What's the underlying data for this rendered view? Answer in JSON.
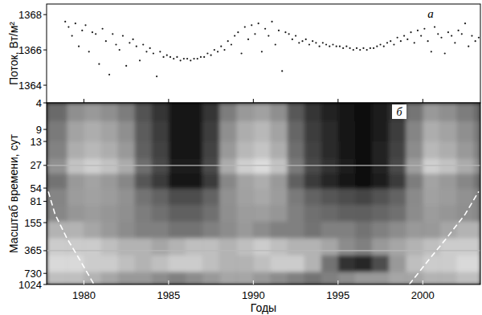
{
  "chart_data": [
    {
      "type": "scatter",
      "y_label": "Поток, Вт/м²",
      "panel_label": "а",
      "color": "#1a1a1a",
      "marker": "dot",
      "tick_labels": "y",
      "xlim": [
        1977.8,
        2003.4
      ],
      "xticks": [
        1980,
        1985,
        1990,
        1995,
        2000
      ],
      "ylim": [
        1363.0,
        1368.6
      ],
      "yticks": [
        1364,
        1366,
        1368
      ],
      "x": [
        1978.9,
        1979.1,
        1979.3,
        1979.5,
        1979.7,
        1979.9,
        1980.1,
        1980.3,
        1980.5,
        1980.7,
        1980.9,
        1981.1,
        1981.3,
        1981.5,
        1981.7,
        1981.9,
        1982.1,
        1982.3,
        1982.5,
        1982.7,
        1982.9,
        1983.1,
        1983.3,
        1983.5,
        1983.7,
        1983.9,
        1984.1,
        1984.3,
        1984.5,
        1984.7,
        1984.9,
        1985.1,
        1985.3,
        1985.5,
        1985.7,
        1985.9,
        1986.1,
        1986.3,
        1986.5,
        1986.7,
        1986.9,
        1987.1,
        1987.3,
        1987.5,
        1987.7,
        1987.9,
        1988.1,
        1988.3,
        1988.5,
        1988.7,
        1988.9,
        1989.1,
        1989.3,
        1989.5,
        1989.7,
        1989.9,
        1990.1,
        1990.3,
        1990.5,
        1990.7,
        1990.9,
        1991.1,
        1991.3,
        1991.5,
        1991.7,
        1991.9,
        1992.1,
        1992.3,
        1992.5,
        1992.7,
        1992.9,
        1993.1,
        1993.3,
        1993.5,
        1993.7,
        1993.9,
        1994.1,
        1994.3,
        1994.5,
        1994.7,
        1994.9,
        1995.1,
        1995.3,
        1995.5,
        1995.7,
        1995.9,
        1996.1,
        1996.3,
        1996.5,
        1996.7,
        1996.9,
        1997.1,
        1997.3,
        1997.5,
        1997.7,
        1997.9,
        1998.1,
        1998.3,
        1998.5,
        1998.7,
        1998.9,
        1999.1,
        1999.3,
        1999.5,
        1999.7,
        1999.9,
        2000.1,
        2000.3,
        2000.5,
        2000.7,
        2000.9,
        2001.1,
        2001.3,
        2001.5,
        2001.7,
        2001.9,
        2002.1,
        2002.3,
        2002.5,
        2002.7,
        2002.9,
        2003.1,
        2003.3
      ],
      "values": [
        1367.6,
        1367.3,
        1366.8,
        1367.5,
        1366.2,
        1367.1,
        1367.4,
        1365.9,
        1367.0,
        1366.9,
        1365.2,
        1367.2,
        1366.5,
        1364.6,
        1366.9,
        1366.3,
        1366.0,
        1366.8,
        1365.1,
        1366.4,
        1366.6,
        1366.2,
        1365.4,
        1366.3,
        1365.9,
        1366.1,
        1365.8,
        1364.5,
        1365.9,
        1365.6,
        1365.7,
        1365.6,
        1365.5,
        1365.6,
        1365.4,
        1365.5,
        1365.5,
        1365.4,
        1365.5,
        1365.5,
        1365.6,
        1365.6,
        1365.8,
        1365.7,
        1366.0,
        1365.9,
        1366.2,
        1366.0,
        1366.5,
        1366.3,
        1366.8,
        1367.0,
        1365.8,
        1367.3,
        1366.6,
        1367.4,
        1366.9,
        1367.5,
        1365.9,
        1367.2,
        1366.8,
        1367.6,
        1366.3,
        1367.1,
        1364.8,
        1367.0,
        1366.9,
        1366.6,
        1366.8,
        1366.4,
        1366.5,
        1366.6,
        1366.3,
        1366.5,
        1366.4,
        1366.2,
        1366.4,
        1366.3,
        1366.2,
        1366.3,
        1366.2,
        1366.2,
        1366.1,
        1366.2,
        1366.1,
        1366.0,
        1366.1,
        1366.0,
        1366.1,
        1366.0,
        1366.1,
        1366.1,
        1366.2,
        1366.3,
        1366.2,
        1366.4,
        1366.5,
        1366.3,
        1366.7,
        1366.5,
        1366.8,
        1366.6,
        1367.0,
        1366.4,
        1367.1,
        1366.8,
        1367.2,
        1366.5,
        1365.9,
        1367.3,
        1366.9,
        1366.7,
        1365.8,
        1367.0,
        1366.8,
        1366.4,
        1367.1,
        1366.9,
        1367.5,
        1366.2,
        1366.8,
        1366.5,
        1366.7
      ]
    },
    {
      "type": "heatmap",
      "y_label": "Масштаб времени, сут",
      "x_label": "Годы",
      "panel_label": "б",
      "log": "y",
      "xlim": [
        1977.8,
        2003.4
      ],
      "xticks": [
        1980,
        1985,
        1990,
        1995,
        2000
      ],
      "ylim": [
        1024,
        4
      ],
      "yticks": [
        4,
        9,
        13,
        27,
        54,
        81,
        155,
        365,
        730,
        1024
      ],
      "hlines": [
        27,
        365
      ],
      "zlim": [
        0,
        1
      ],
      "x_edges": [
        1977.8,
        1979,
        1980,
        1981,
        1982,
        1983,
        1984,
        1985,
        1986,
        1987,
        1988,
        1989,
        1990,
        1991,
        1992,
        1993,
        1994,
        1995,
        1996,
        1997,
        1998,
        1999,
        2000,
        2001,
        2002,
        2003,
        2003.4
      ],
      "y_edges": [
        4,
        7,
        13,
        22,
        35,
        55,
        90,
        150,
        250,
        420,
        700,
        1024
      ],
      "cells": [
        [
          0.42,
          0.56,
          0.6,
          0.56,
          0.49,
          0.32,
          0.21,
          0.07,
          0.07,
          0.21,
          0.49,
          0.6,
          0.63,
          0.56,
          0.35,
          0.21,
          0.14,
          0.07,
          0.04,
          0.1,
          0.21,
          0.46,
          0.6,
          0.56,
          0.49,
          0.42
        ],
        [
          0.48,
          0.64,
          0.68,
          0.64,
          0.56,
          0.36,
          0.24,
          0.08,
          0.08,
          0.24,
          0.56,
          0.68,
          0.72,
          0.64,
          0.4,
          0.24,
          0.16,
          0.08,
          0.04,
          0.12,
          0.24,
          0.52,
          0.68,
          0.64,
          0.56,
          0.48
        ],
        [
          0.51,
          0.68,
          0.72,
          0.68,
          0.6,
          0.38,
          0.26,
          0.09,
          0.09,
          0.26,
          0.6,
          0.72,
          0.77,
          0.68,
          0.43,
          0.26,
          0.17,
          0.09,
          0.04,
          0.13,
          0.26,
          0.55,
          0.72,
          0.68,
          0.6,
          0.51
        ],
        [
          0.57,
          0.76,
          0.81,
          0.76,
          0.67,
          0.43,
          0.29,
          0.1,
          0.1,
          0.29,
          0.67,
          0.81,
          0.86,
          0.76,
          0.48,
          0.29,
          0.19,
          0.1,
          0.05,
          0.14,
          0.29,
          0.62,
          0.81,
          0.76,
          0.67,
          0.57
        ],
        [
          0.45,
          0.6,
          0.64,
          0.6,
          0.53,
          0.34,
          0.23,
          0.08,
          0.08,
          0.23,
          0.53,
          0.64,
          0.68,
          0.6,
          0.38,
          0.23,
          0.15,
          0.08,
          0.04,
          0.11,
          0.23,
          0.49,
          0.64,
          0.6,
          0.53,
          0.45
        ],
        [
          0.52,
          0.61,
          0.63,
          0.61,
          0.57,
          0.45,
          0.39,
          0.3,
          0.3,
          0.39,
          0.57,
          0.63,
          0.66,
          0.61,
          0.48,
          0.39,
          0.34,
          0.3,
          0.27,
          0.32,
          0.39,
          0.54,
          0.63,
          0.61,
          0.57,
          0.52
        ],
        [
          0.53,
          0.59,
          0.61,
          0.59,
          0.56,
          0.49,
          0.44,
          0.38,
          0.38,
          0.44,
          0.56,
          0.61,
          0.62,
          0.59,
          0.5,
          0.44,
          0.41,
          0.38,
          0.37,
          0.4,
          0.44,
          0.55,
          0.61,
          0.59,
          0.56,
          0.53
        ],
        [
          0.7,
          0.7,
          0.65,
          0.6,
          0.55,
          0.5,
          0.5,
          0.45,
          0.45,
          0.5,
          0.55,
          0.6,
          0.55,
          0.5,
          0.5,
          0.45,
          0.5,
          0.5,
          0.45,
          0.5,
          0.55,
          0.6,
          0.6,
          0.65,
          0.7,
          0.7
        ],
        [
          0.8,
          0.8,
          0.8,
          0.75,
          0.7,
          0.7,
          0.65,
          0.7,
          0.75,
          0.75,
          0.7,
          0.75,
          0.8,
          0.75,
          0.7,
          0.7,
          0.65,
          0.55,
          0.5,
          0.6,
          0.65,
          0.7,
          0.75,
          0.8,
          0.8,
          0.8
        ],
        [
          0.85,
          0.85,
          0.8,
          0.8,
          0.75,
          0.7,
          0.75,
          0.8,
          0.8,
          0.75,
          0.7,
          0.7,
          0.75,
          0.8,
          0.8,
          0.7,
          0.45,
          0.2,
          0.15,
          0.3,
          0.6,
          0.75,
          0.8,
          0.8,
          0.85,
          0.85
        ],
        [
          0.75,
          0.75,
          0.7,
          0.65,
          0.6,
          0.6,
          0.55,
          0.5,
          0.55,
          0.6,
          0.65,
          0.65,
          0.6,
          0.55,
          0.5,
          0.45,
          0.5,
          0.55,
          0.6,
          0.6,
          0.65,
          0.65,
          0.7,
          0.7,
          0.75,
          0.75
        ]
      ],
      "coi": [
        {
          "x": [
            1977.9,
            1978.3,
            1979.0,
            1979.8,
            1980.6
          ],
          "y": [
            60,
            120,
            250,
            500,
            1024
          ]
        },
        {
          "x": [
            1999.2,
            2000.3,
            2001.4,
            2002.5,
            2003.3
          ],
          "y": [
            1024,
            500,
            250,
            120,
            60
          ]
        }
      ]
    }
  ]
}
